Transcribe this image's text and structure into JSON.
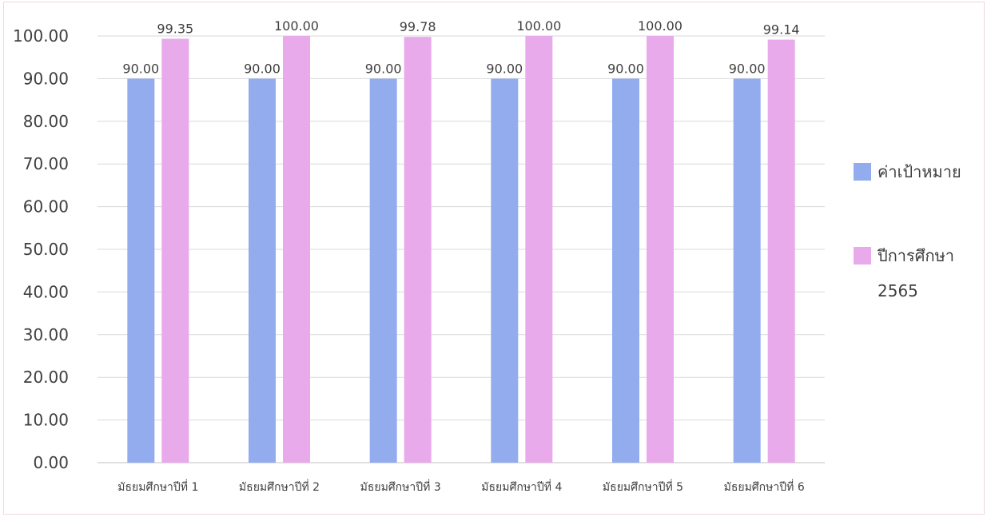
{
  "chart_data": {
    "type": "bar",
    "title": "",
    "xlabel": "",
    "ylabel": "",
    "categories": [
      "มัธยมศึกษาปีที่ 1",
      "มัธยมศึกษาปีที่ 2",
      "มัธยมศึกษาปีที่ 3",
      "มัธยมศึกษาปีที่ 4",
      "มัธยมศึกษาปีที่ 5",
      "มัธยมศึกษาปีที่ 6"
    ],
    "series": [
      {
        "name": "ค่าเป้าหมาย",
        "color": "#92acee",
        "values": [
          90.0,
          90.0,
          90.0,
          90.0,
          90.0,
          90.0
        ],
        "labels": [
          "90.00",
          "90.00",
          "90.00",
          "90.00",
          "90.00",
          "90.00"
        ]
      },
      {
        "name": "ปีการศึกษา 2565",
        "color": "#e8aaea",
        "values": [
          99.35,
          100.0,
          99.78,
          100.0,
          100.0,
          99.14
        ],
        "labels": [
          "99.35",
          "100.00",
          "99.78",
          "100.00",
          "100.00",
          "99.14"
        ]
      }
    ],
    "ylim": [
      0,
      100
    ],
    "yticks": [
      "0.00",
      "10.00",
      "20.00",
      "30.00",
      "40.00",
      "50.00",
      "60.00",
      "70.00",
      "80.00",
      "90.00",
      "100.00"
    ],
    "grid": true,
    "legend_position": "right",
    "legend_entries": [
      {
        "lines": [
          "ค่าเป้าหมาย"
        ],
        "color": "#92acee"
      },
      {
        "lines": [
          "ปีการศึกษา",
          "2565"
        ],
        "color": "#e8aaea"
      }
    ]
  }
}
